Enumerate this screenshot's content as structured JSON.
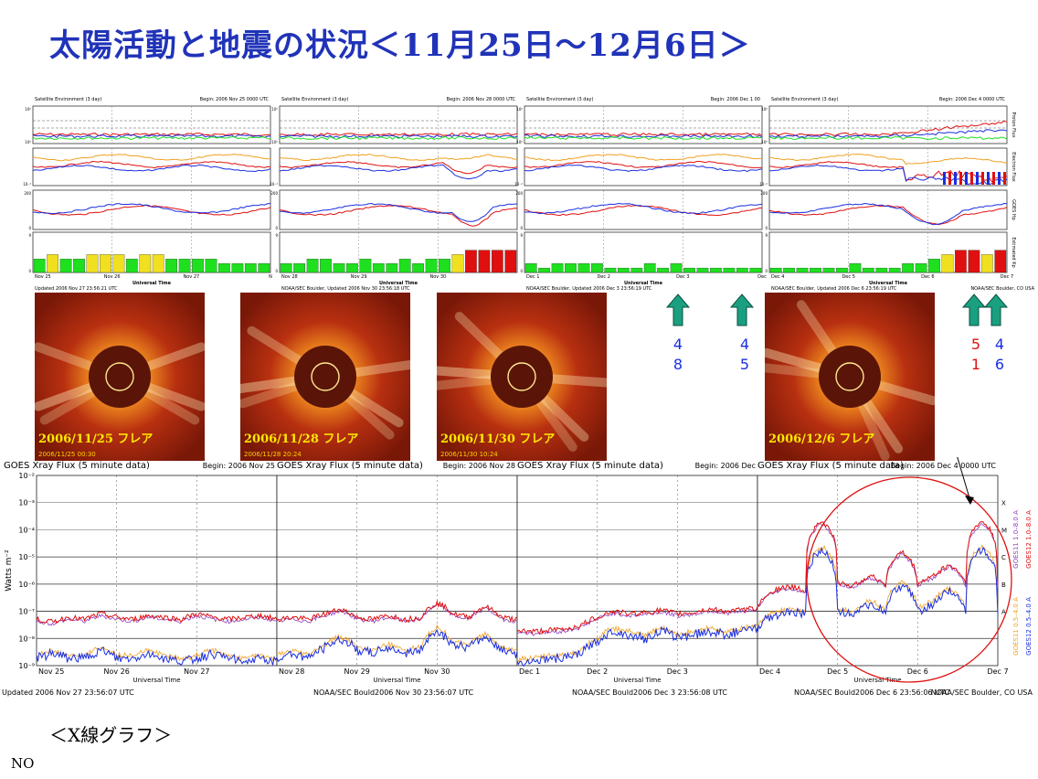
{
  "title": "太陽活動と地震の状況＜11月25日～12月6日＞",
  "xray_caption": "＜X線グラフ＞",
  "no_label": "NO",
  "colors": {
    "title": "#2033b8",
    "red": "#e01010",
    "blue": "#1a2ee0",
    "green": "#1ee01e",
    "orange": "#f0a020",
    "yellow": "#f0e020",
    "arrow": "#1aa080"
  },
  "top_panels": [
    {
      "header_left": "Satellite Environment (3 day)",
      "header_right": "Begin:  2006 Nov 25 0000 UTC",
      "day_labels": [
        "Nov 25",
        "Nov 26",
        "Nov 27",
        "N"
      ],
      "footer_left": "Updated 2006 Nov 27 23:56:21 UTC",
      "footer_right": "",
      "kp": [
        3,
        4,
        3,
        3,
        4,
        4,
        4,
        3,
        4,
        4,
        3,
        3,
        3,
        3,
        2,
        2,
        2,
        2
      ]
    },
    {
      "header_left": "Satellite Environment (3 day)",
      "header_right": "Begin:  2006 Nov 28 0000 UTC",
      "day_labels": [
        "Nov 28",
        "Nov 29",
        "Nov 30"
      ],
      "footer_left": "NOAA/SEC Boulder, Updated 2006 Nov 30 23:56:18 UTC",
      "footer_right": "",
      "kp": [
        2,
        2,
        3,
        3,
        2,
        2,
        3,
        2,
        2,
        3,
        2,
        3,
        3,
        4,
        5,
        5,
        5,
        5
      ]
    },
    {
      "header_left": "Satellite Environment (3 day)",
      "header_right": "Begin:  2006 Dec 1 00",
      "day_labels": [
        "Dec 1",
        "Dec 2",
        "Dec 3",
        "Dec"
      ],
      "footer_left": "NOAA/SEC Boulder, Updated 2006 Dec  3 23:56:19 UTC",
      "footer_right": "",
      "kp": [
        2,
        1,
        2,
        2,
        2,
        2,
        1,
        1,
        1,
        2,
        1,
        2,
        1,
        1,
        1,
        1,
        1,
        1
      ]
    },
    {
      "header_left": "Satellite Environment (3 day)",
      "header_right": "Begin:  2006 Dec 4 0000 UTC",
      "day_labels": [
        "Dec 4",
        "Dec 5",
        "Dec 6",
        "Dec 7"
      ],
      "footer_left": "NOAA/SEC Boulder, Updated 2006 Dec  6 23:56:19 UTC",
      "footer_right": "NOAA/SEC Boulder, CO USA",
      "kp": [
        1,
        1,
        1,
        1,
        1,
        1,
        2,
        1,
        1,
        1,
        2,
        2,
        3,
        4,
        5,
        5,
        4,
        5
      ]
    }
  ],
  "top_axis": {
    "proton_ticks": [
      "10⁰",
      "10⁻²",
      "10⁰"
    ],
    "right_labels": [
      "Proton Flux",
      "Electron Flux",
      "GOES Hp",
      "Estimated Kp"
    ],
    "hp_ticks": [
      "200",
      "0"
    ],
    "kp_ticks": [
      "9",
      "0"
    ],
    "x_title": "Universal Time"
  },
  "cme_images": [
    {
      "label": "2006/11/25  フレア",
      "stamp": "2006/11/25 00:30"
    },
    {
      "label": "2006/11/28  フレア",
      "stamp": "2006/11/28 20:24"
    },
    {
      "label": "2006/11/30  フレア",
      "stamp": "2006/11/30 10:24"
    },
    {
      "label": "2006/12/6  フレア",
      "stamp": ""
    }
  ],
  "quakes": [
    {
      "top": "4",
      "bottom": "8",
      "color": "#1a2ee0"
    },
    {
      "top": "4",
      "bottom": "5",
      "color": "#1a2ee0"
    },
    {
      "top": "5",
      "bottom": "1",
      "color": "#e01010"
    },
    {
      "top": "4",
      "bottom": "6",
      "color": "#1a2ee0"
    }
  ],
  "chart_data": {
    "type": "line",
    "title": "GOES Xray Flux (5 minute data)",
    "ylabel": "Watts m⁻²",
    "xlabel": "Universal Time",
    "y_scale": "log",
    "ylim": [
      1e-09,
      0.01
    ],
    "y_ticks": [
      "10⁻²",
      "10⁻³",
      "10⁻⁴",
      "10⁻⁵",
      "10⁻⁶",
      "10⁻⁷",
      "10⁻⁸",
      "10⁻⁹"
    ],
    "class_letters": [
      "X",
      "M",
      "C",
      "B",
      "A"
    ],
    "panels": [
      {
        "begin": "Begin:  2006 Nov 25",
        "x_ticks": [
          "Nov 25",
          "Nov 26",
          "Nov 27"
        ],
        "updated": "Updated 2006 Nov 27 23:56:07 UTC",
        "long": [
          5e-08,
          4e-08,
          6e-08,
          5e-08,
          8e-08,
          6e-08,
          5e-08,
          7e-08,
          6e-08,
          5e-08,
          8e-08,
          6e-08,
          5e-08,
          6e-08,
          7e-08,
          5e-08
        ],
        "short": [
          2e-09,
          3e-09,
          2e-09,
          2e-09,
          4e-09,
          2e-09,
          2e-09,
          3e-09,
          2e-09,
          1.5e-09,
          2e-09,
          3e-09,
          2e-09,
          1.5e-09,
          2e-09,
          1.5e-09
        ]
      },
      {
        "begin": "Begin:  2006 Nov 28",
        "x_ticks": [
          "Nov 28",
          "Nov 29",
          "Nov 30"
        ],
        "updated": "NOAA/SEC Bould2006 Nov 30 23:56:07 UTC",
        "long": [
          5e-08,
          6e-08,
          5e-08,
          8e-08,
          1.2e-07,
          6e-08,
          5e-08,
          7e-08,
          5e-08,
          6e-08,
          2e-07,
          8e-08,
          6e-08,
          1.5e-07,
          6e-08,
          5e-08
        ],
        "short": [
          2e-09,
          3e-09,
          2e-09,
          5e-09,
          1e-08,
          4e-09,
          3e-09,
          5e-09,
          3e-09,
          4e-09,
          2e-08,
          6e-09,
          5e-09,
          1.2e-08,
          4e-09,
          3e-09
        ]
      },
      {
        "begin": "Begin:  2006 Dec",
        "x_ticks": [
          "Dec 1",
          "Dec 2",
          "Dec 3"
        ],
        "updated": "NOAA/SEC Bould2006 Dec  3 23:56:08 UTC",
        "long": [
          2e-08,
          1.8e-08,
          2e-08,
          2.2e-08,
          3e-08,
          6e-08,
          1e-07,
          8e-08,
          9e-08,
          1.1e-07,
          8e-08,
          9e-08,
          1.2e-07,
          1e-07,
          1.1e-07,
          1.3e-07
        ],
        "short": [
          1.5e-09,
          1.5e-09,
          2e-09,
          2e-09,
          3e-09,
          8e-09,
          2e-08,
          1.5e-08,
          1e-08,
          2e-08,
          1.2e-08,
          1.5e-08,
          2e-08,
          1.5e-08,
          2e-08,
          2.5e-08
        ]
      },
      {
        "begin": "Begin:  2006 Dec 4 0000 UTC",
        "x_ticks": [
          "Dec 4",
          "Dec 5",
          "Dec 6",
          "Dec 7"
        ],
        "updated": "NOAA/SEC Boulder, CO USA",
        "updated_mid": "NOAA/SEC Bould2006 Dec  6 23:56:06 UTC",
        "long": [
          1.5e-07,
          6e-07,
          8e-07,
          6e-07,
          0.0002,
          1.2e-06,
          8e-07,
          2e-06,
          1e-06,
          1.5e-05,
          1e-06,
          2e-06,
          5e-06,
          1e-06,
          0.0002,
          1e-06
        ],
        "short": [
          2e-08,
          8e-08,
          1e-07,
          8e-08,
          2e-05,
          1e-07,
          8e-08,
          2e-07,
          1e-07,
          1e-06,
          1e-07,
          2e-07,
          6e-07,
          1e-07,
          2e-05,
          1e-07
        ]
      }
    ],
    "legend": [
      "GOES12 1.0–8.0 A",
      "GOES11 1.0–8.0 A",
      "GOES12 0.5–4.0 A",
      "GOES11 0.5–4.0 A"
    ]
  }
}
